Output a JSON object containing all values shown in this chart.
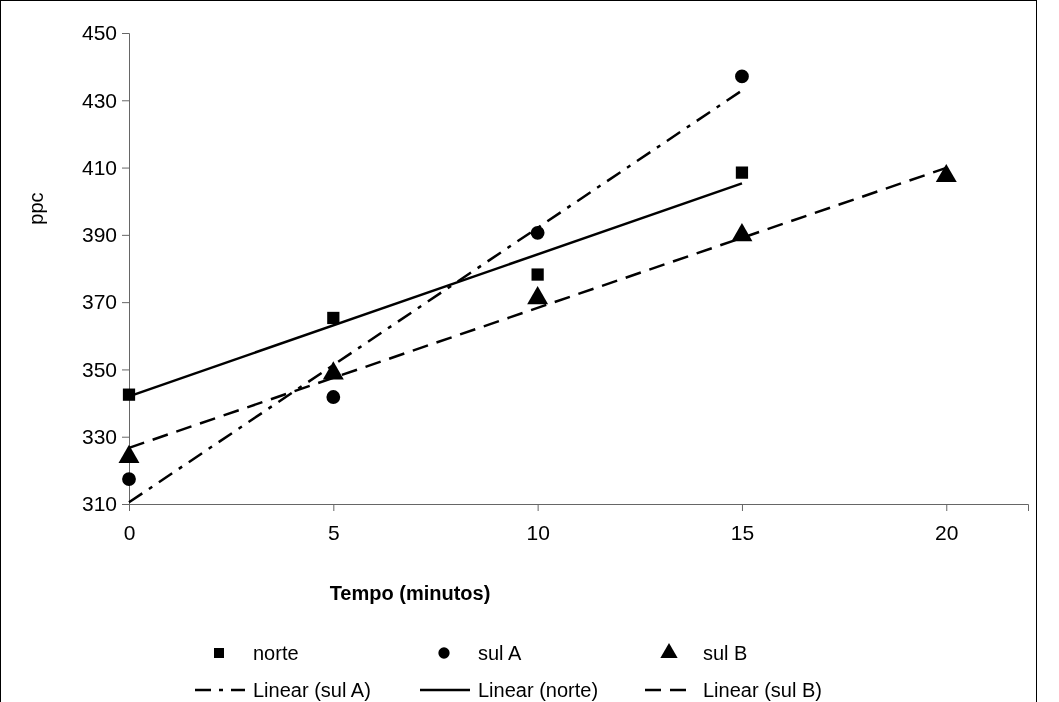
{
  "chart_data": {
    "type": "scatter",
    "xlabel": "Tempo (minutos)",
    "ylabel": "ppc",
    "xlim": [
      0,
      22
    ],
    "xticks": [
      0,
      5,
      10,
      15,
      20
    ],
    "ylim": [
      310,
      450
    ],
    "yticks": [
      310,
      330,
      350,
      370,
      390,
      410,
      430,
      450
    ],
    "grid": false,
    "legend": "bottom",
    "series": [
      {
        "name": "norte",
        "marker": "square",
        "color": "#000000",
        "x": [
          0,
          5,
          10,
          15
        ],
        "values": [
          342.5,
          365.3,
          378.2,
          408.5
        ]
      },
      {
        "name": "sul A",
        "marker": "circle",
        "color": "#000000",
        "x": [
          0,
          5,
          10,
          15
        ],
        "values": [
          317.4,
          341.8,
          390.6,
          437.1
        ]
      },
      {
        "name": "sul B",
        "marker": "triangle",
        "color": "#000000",
        "x": [
          0,
          5,
          10,
          15,
          20
        ],
        "values": [
          324,
          348.8,
          371.2,
          389.9,
          407.5
        ]
      },
      {
        "name": "Linear (sul A)",
        "type": "line",
        "line_style": "dashdot",
        "color": "#000000",
        "x": [
          0,
          15
        ],
        "values": [
          310.5,
          432.9
        ]
      },
      {
        "name": "Linear (norte)",
        "type": "line",
        "line_style": "solid",
        "color": "#000000",
        "x": [
          0,
          15
        ],
        "values": [
          342.0,
          405.3
        ]
      },
      {
        "name": "Linear (sul B)",
        "type": "line",
        "line_style": "dashed",
        "color": "#000000",
        "x": [
          0,
          20
        ],
        "values": [
          326.7,
          409.9
        ]
      }
    ]
  }
}
